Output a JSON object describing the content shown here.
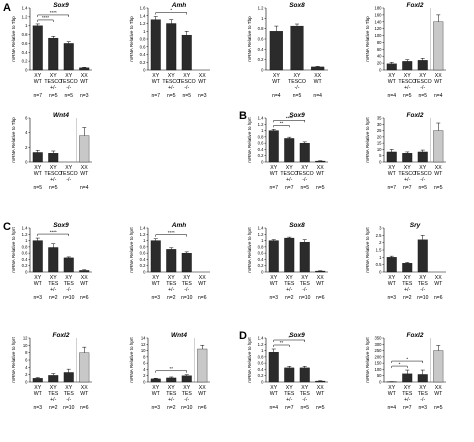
{
  "panel_letters": [
    "A",
    "B",
    "C",
    "D"
  ],
  "colors": {
    "dark_bar": "#2b2b2b",
    "light_bar": "#c8c8c8",
    "axis": "#000000"
  },
  "chart_data": [
    {
      "panel": "A",
      "type": "bar",
      "title": "Sox9",
      "ylabel": "mRNA Relative to Tbp",
      "ylim": [
        0,
        1.4
      ],
      "yticks": [
        0,
        0.2,
        0.4,
        0.6,
        0.8,
        1,
        1.2,
        1.4
      ],
      "categories": [
        [
          "XY",
          "WT"
        ],
        [
          "XY",
          "TESCO",
          "+/-"
        ],
        [
          "XY",
          "TESCO",
          "-/-"
        ],
        [
          "XX",
          "WT"
        ]
      ],
      "values": [
        1.0,
        0.72,
        0.6,
        0.05
      ],
      "errors": [
        0.04,
        0.04,
        0.04,
        0.01
      ],
      "shades": [
        "dark",
        "dark",
        "dark",
        "dark"
      ],
      "n_labels": [
        "n=7",
        "n=5",
        "n=5",
        "n=3"
      ],
      "significance": [
        {
          "from": 0,
          "to": 1,
          "label": "****"
        },
        {
          "from": 0,
          "to": 2,
          "label": "****"
        }
      ]
    },
    {
      "panel": "A",
      "type": "bar",
      "title": "Amh",
      "ylabel": "mRNA Relative to Tbp",
      "ylim": [
        0,
        1.6
      ],
      "yticks": [
        0,
        0.2,
        0.4,
        0.6,
        0.8,
        1,
        1.2,
        1.4,
        1.6
      ],
      "categories": [
        [
          "XY",
          "WT"
        ],
        [
          "XY",
          "TESCO",
          "+/-"
        ],
        [
          "XY",
          "TESCO",
          "-/-"
        ],
        [
          "XX",
          "WT"
        ]
      ],
      "values": [
        1.3,
        1.2,
        0.9,
        0
      ],
      "errors": [
        0.08,
        0.1,
        0.1,
        0
      ],
      "shades": [
        "dark",
        "dark",
        "dark",
        "dark"
      ],
      "n_labels": [
        "n=7",
        "n=5",
        "n=5",
        "n=3"
      ],
      "significance": [
        {
          "from": 0,
          "to": 2,
          "label": "*"
        }
      ]
    },
    {
      "panel": "A",
      "type": "bar",
      "title": "Sox8",
      "ylabel": "mRNA Relative to Tbp",
      "ylim": [
        0,
        1.2
      ],
      "yticks": [
        0,
        0.2,
        0.4,
        0.6,
        0.8,
        1,
        1.2
      ],
      "categories": [
        [
          "XY",
          "WT"
        ],
        [
          "XY",
          "TESCO",
          "-/-"
        ],
        [
          "XX",
          "WT"
        ]
      ],
      "values": [
        0.75,
        0.85,
        0.06
      ],
      "errors": [
        0.1,
        0.04,
        0.01
      ],
      "shades": [
        "dark",
        "dark",
        "dark"
      ],
      "n_labels": [
        "n=4",
        "n=5",
        "n=4"
      ],
      "significance": []
    },
    {
      "panel": "A",
      "type": "bar",
      "title": "Foxl2",
      "ylabel": "mRNA Relative to Tbp",
      "ylim": [
        0,
        180
      ],
      "yticks": [
        0,
        20,
        40,
        60,
        80,
        100,
        120,
        140,
        160,
        180
      ],
      "categories": [
        [
          "XY",
          "WT"
        ],
        [
          "XY",
          "TESCO",
          "+/-"
        ],
        [
          "XY",
          "TESCO",
          "-/-"
        ],
        [
          "XX",
          "WT"
        ]
      ],
      "values": [
        18,
        25,
        28,
        140
      ],
      "errors": [
        4,
        5,
        6,
        20
      ],
      "shades": [
        "dark",
        "dark",
        "dark",
        "light"
      ],
      "n_labels": [
        "n=4",
        "n=5",
        "n=5",
        "n=4"
      ],
      "break_before_last": true,
      "significance": []
    },
    {
      "panel": "A",
      "type": "bar",
      "title": "Wnt4",
      "ylabel": "mRNA Relative to Tbp",
      "ylim": [
        0,
        6
      ],
      "yticks": [
        0,
        2,
        4,
        6
      ],
      "categories": [
        [
          "XY",
          "WT"
        ],
        [
          "XY",
          "TESCO",
          "+/-"
        ],
        [
          "XY",
          "TESCO",
          "-/-"
        ],
        [
          "XX",
          "WT"
        ]
      ],
      "values": [
        1.3,
        1.2,
        0,
        3.6
      ],
      "errors": [
        0.3,
        0.3,
        0,
        1.1
      ],
      "shades": [
        "dark",
        "dark",
        "dark",
        "light"
      ],
      "n_labels": [
        "n=5",
        "n=5",
        "",
        "n=4"
      ],
      "break_before_last": true,
      "significance": []
    },
    {
      "panel": "B",
      "type": "bar",
      "title": "Sox9",
      "ylabel": "mRNA Relative to hprt",
      "ylim": [
        0,
        1.4
      ],
      "yticks": [
        0,
        0.2,
        0.4,
        0.6,
        0.8,
        1,
        1.2,
        1.4
      ],
      "categories": [
        [
          "XY",
          "WT"
        ],
        [
          "XY",
          "TESCO",
          "+/-"
        ],
        [
          "XY",
          "TESCO",
          "-/-"
        ],
        [
          "XX",
          "WT"
        ]
      ],
      "values": [
        1.0,
        0.75,
        0.6,
        0.03
      ],
      "errors": [
        0.04,
        0.04,
        0.04,
        0.01
      ],
      "shades": [
        "dark",
        "dark",
        "dark",
        "dark"
      ],
      "n_labels": [
        "n=7",
        "n=7",
        "n=5",
        "n=5"
      ],
      "significance": [
        {
          "from": 0,
          "to": 1,
          "label": "**"
        },
        {
          "from": 0,
          "to": 2,
          "label": "****"
        }
      ]
    },
    {
      "panel": "B",
      "type": "bar",
      "title": "Foxl2",
      "ylabel": "mRNA Relative to hprt",
      "ylim": [
        0,
        35
      ],
      "yticks": [
        0,
        5,
        10,
        15,
        20,
        25,
        30,
        35
      ],
      "categories": [
        [
          "XY",
          "WT"
        ],
        [
          "XY",
          "TESCO",
          "+/-"
        ],
        [
          "XY",
          "TESCO",
          "-/-"
        ],
        [
          "XX",
          "WT"
        ]
      ],
      "values": [
        8,
        7,
        8,
        25
      ],
      "errors": [
        2,
        1,
        1.5,
        6
      ],
      "shades": [
        "dark",
        "dark",
        "dark",
        "light"
      ],
      "n_labels": [
        "n=7",
        "n=7",
        "n=5",
        "n=5"
      ],
      "break_before_last": true,
      "significance": []
    },
    {
      "panel": "C",
      "type": "bar",
      "title": "Sox9",
      "ylabel": "mRNA Relative to hprt",
      "ylim": [
        0,
        1.4
      ],
      "yticks": [
        0,
        0.2,
        0.4,
        0.6,
        0.8,
        1,
        1.2,
        1.4
      ],
      "categories": [
        [
          "XY",
          "WT"
        ],
        [
          "XY",
          "TES",
          "+/-"
        ],
        [
          "XY",
          "TES",
          "-/-"
        ],
        [
          "XX",
          "WT"
        ]
      ],
      "values": [
        1.0,
        0.78,
        0.45,
        0.05
      ],
      "errors": [
        0.08,
        0.12,
        0.03,
        0.02
      ],
      "shades": [
        "dark",
        "dark",
        "dark",
        "dark"
      ],
      "n_labels": [
        "n=3",
        "n=2",
        "n=10",
        "n=6"
      ],
      "significance": [
        {
          "from": 0,
          "to": 2,
          "label": "****"
        }
      ]
    },
    {
      "panel": "C",
      "type": "bar",
      "title": "Amh",
      "ylabel": "mRNA Relative to hprt",
      "ylim": [
        0,
        1.4
      ],
      "yticks": [
        0,
        0.2,
        0.4,
        0.6,
        0.8,
        1,
        1.2,
        1.4
      ],
      "categories": [
        [
          "XY",
          "WT"
        ],
        [
          "XY",
          "TES",
          "+/-"
        ],
        [
          "XY",
          "TES",
          "-/-"
        ],
        [
          "XX",
          "WT"
        ]
      ],
      "values": [
        1.0,
        0.72,
        0.6,
        0
      ],
      "errors": [
        0.06,
        0.05,
        0.04,
        0
      ],
      "shades": [
        "dark",
        "dark",
        "dark",
        "dark"
      ],
      "n_labels": [
        "n=3",
        "n=2",
        "n=10",
        "n=6"
      ],
      "significance": [
        {
          "from": 0,
          "to": 2,
          "label": "****"
        }
      ]
    },
    {
      "panel": "C",
      "type": "bar",
      "title": "Sox8",
      "ylabel": "mRNA Relative to hprt",
      "ylim": [
        0,
        1.4
      ],
      "yticks": [
        0,
        0.2,
        0.4,
        0.6,
        0.8,
        1,
        1.2,
        1.4
      ],
      "categories": [
        [
          "XY",
          "WT"
        ],
        [
          "XY",
          "TES",
          "+/-"
        ],
        [
          "XY",
          "TES",
          "-/-"
        ],
        [
          "XX",
          "WT"
        ]
      ],
      "values": [
        1.0,
        1.08,
        0.95,
        0.03
      ],
      "errors": [
        0.03,
        0.03,
        0.08,
        0.01
      ],
      "shades": [
        "dark",
        "dark",
        "dark",
        "dark"
      ],
      "n_labels": [
        "n=3",
        "n=2",
        "n=10",
        "n=6"
      ],
      "significance": []
    },
    {
      "panel": "C",
      "type": "bar",
      "title": "Sry",
      "ylabel": "mRNA Relative to hprt",
      "ylim": [
        0,
        3
      ],
      "yticks": [
        0,
        0.5,
        1,
        1.5,
        2,
        2.5,
        3
      ],
      "categories": [
        [
          "XY",
          "WT"
        ],
        [
          "XY",
          "TES",
          "+/-"
        ],
        [
          "XY",
          "TES",
          "-/-"
        ],
        [
          "XX",
          "WT"
        ]
      ],
      "values": [
        1.0,
        0.6,
        2.2,
        0
      ],
      "errors": [
        0.08,
        0.05,
        0.3,
        0
      ],
      "shades": [
        "dark",
        "dark",
        "dark",
        "dark"
      ],
      "n_labels": [
        "n=3",
        "n=2",
        "n=10",
        "n=6"
      ],
      "significance": []
    },
    {
      "panel": "C",
      "type": "bar",
      "title": "Foxl2",
      "ylabel": "mRNA Relative to hprt",
      "ylim": [
        0,
        12
      ],
      "yticks": [
        0,
        2,
        4,
        6,
        8,
        10,
        12
      ],
      "categories": [
        [
          "XY",
          "WT"
        ],
        [
          "XY",
          "TES",
          "+/-"
        ],
        [
          "XY",
          "TES",
          "-/-"
        ],
        [
          "XX",
          "WT"
        ]
      ],
      "values": [
        1.0,
        1.8,
        2.6,
        8
      ],
      "errors": [
        0.2,
        0.5,
        0.9,
        1.5
      ],
      "shades": [
        "dark",
        "dark",
        "dark",
        "light"
      ],
      "n_labels": [
        "n=3",
        "n=2",
        "n=10",
        "n=6"
      ],
      "break_before_last": true,
      "significance": []
    },
    {
      "panel": "C",
      "type": "bar",
      "title": "Wnt4",
      "ylabel": "mRNA Relative to hprt",
      "ylim": [
        0,
        14
      ],
      "yticks": [
        0,
        2,
        4,
        6,
        8,
        10,
        12,
        14
      ],
      "categories": [
        [
          "XY",
          "WT"
        ],
        [
          "XY",
          "TES",
          "+/-"
        ],
        [
          "XY",
          "TES",
          "-/-"
        ],
        [
          "XX",
          "WT"
        ]
      ],
      "values": [
        1.0,
        1.3,
        2.0,
        10.5
      ],
      "errors": [
        0.2,
        0.3,
        0.3,
        1.2
      ],
      "shades": [
        "dark",
        "dark",
        "dark",
        "light"
      ],
      "n_labels": [
        "n=3",
        "n=2",
        "n=10",
        "n=6"
      ],
      "break_before_last": true,
      "significance": [
        {
          "from": 0,
          "to": 2,
          "label": "**"
        }
      ]
    },
    {
      "panel": "D",
      "type": "bar",
      "title": "Sox9",
      "ylabel": "mRNA Relative to hprt",
      "ylim": [
        0,
        1.4
      ],
      "yticks": [
        0,
        0.2,
        0.4,
        0.6,
        0.8,
        1,
        1.2,
        1.4
      ],
      "categories": [
        [
          "XY",
          "WT"
        ],
        [
          "XY",
          "TES",
          "+/-"
        ],
        [
          "XY",
          "TES",
          "-/-"
        ],
        [
          "XX",
          "WT"
        ]
      ],
      "values": [
        0.95,
        0.45,
        0.45,
        0.03
      ],
      "errors": [
        0.1,
        0.05,
        0.05,
        0.01
      ],
      "shades": [
        "dark",
        "dark",
        "dark",
        "dark"
      ],
      "n_labels": [
        "n=4",
        "n=7",
        "n=5",
        "n=5"
      ],
      "significance": [
        {
          "from": 0,
          "to": 1,
          "label": "**"
        },
        {
          "from": 0,
          "to": 2,
          "label": "*"
        }
      ]
    },
    {
      "panel": "D",
      "type": "bar",
      "title": "Foxl2",
      "ylabel": "mRNA Relative to hprt",
      "ylim": [
        0,
        350
      ],
      "yticks": [
        0,
        50,
        100,
        150,
        200,
        250,
        300,
        350
      ],
      "categories": [
        [
          "XY",
          "WT"
        ],
        [
          "XY",
          "TES",
          "+/-"
        ],
        [
          "XY",
          "TES",
          "-/-"
        ],
        [
          "XX",
          "WT"
        ]
      ],
      "values": [
        2,
        65,
        60,
        250
      ],
      "errors": [
        1,
        30,
        35,
        40
      ],
      "shades": [
        "dark",
        "dark",
        "dark",
        "light"
      ],
      "n_labels": [
        "n=4",
        "n=7",
        "n=3",
        "n=5"
      ],
      "break_before_last": true,
      "significance": [
        {
          "from": 0,
          "to": 1,
          "label": "*"
        },
        {
          "from": 0,
          "to": 2,
          "label": "*"
        }
      ]
    }
  ]
}
